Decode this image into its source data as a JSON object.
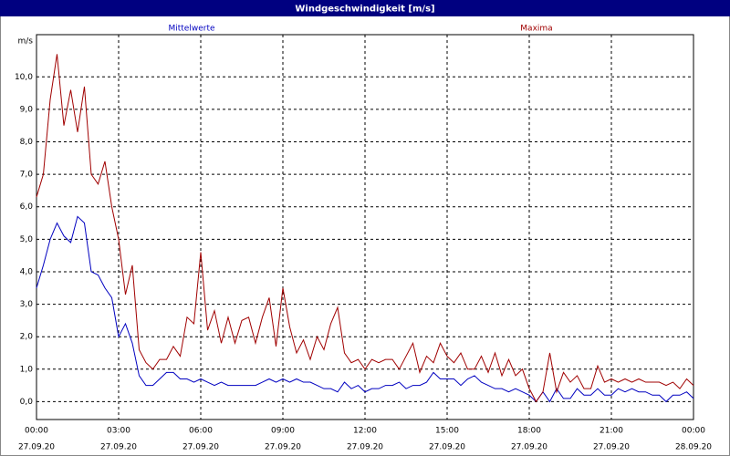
{
  "chart_data": {
    "type": "line",
    "title": "Windgeschwindigkeit [m/s]",
    "y_unit": "m/s",
    "x": [
      0,
      0.25,
      0.5,
      0.75,
      1,
      1.25,
      1.5,
      1.75,
      2,
      2.25,
      2.5,
      2.75,
      3,
      3.25,
      3.5,
      3.75,
      4,
      4.25,
      4.5,
      4.75,
      5,
      5.25,
      5.5,
      5.75,
      6,
      6.25,
      6.5,
      6.75,
      7,
      7.25,
      7.5,
      7.75,
      8,
      8.25,
      8.5,
      8.75,
      9,
      9.25,
      9.5,
      9.75,
      10,
      10.25,
      10.5,
      10.75,
      11,
      11.25,
      11.5,
      11.75,
      12,
      12.25,
      12.5,
      12.75,
      13,
      13.25,
      13.5,
      13.75,
      14,
      14.25,
      14.5,
      14.75,
      15,
      15.25,
      15.5,
      15.75,
      16,
      16.25,
      16.5,
      16.75,
      17,
      17.25,
      17.5,
      17.75,
      18,
      18.25,
      18.5,
      18.75,
      19,
      19.25,
      19.5,
      19.75,
      20,
      20.25,
      20.5,
      20.75,
      21,
      21.25,
      21.5,
      21.75,
      22,
      22.25,
      22.5,
      22.75,
      23,
      23.25,
      23.5,
      23.75,
      24
    ],
    "series": [
      {
        "name": "Mittelwerte",
        "color": "#0000c0",
        "values": [
          3.5,
          4.2,
          5.0,
          5.5,
          5.1,
          4.9,
          5.7,
          5.5,
          4.0,
          3.9,
          3.5,
          3.2,
          2.0,
          2.4,
          1.8,
          0.8,
          0.5,
          0.5,
          0.7,
          0.9,
          0.9,
          0.7,
          0.7,
          0.6,
          0.7,
          0.6,
          0.5,
          0.6,
          0.5,
          0.5,
          0.5,
          0.5,
          0.5,
          0.6,
          0.7,
          0.6,
          0.7,
          0.6,
          0.7,
          0.6,
          0.6,
          0.5,
          0.4,
          0.4,
          0.3,
          0.6,
          0.4,
          0.5,
          0.3,
          0.4,
          0.4,
          0.5,
          0.5,
          0.6,
          0.4,
          0.5,
          0.5,
          0.6,
          0.9,
          0.7,
          0.7,
          0.7,
          0.5,
          0.7,
          0.8,
          0.6,
          0.5,
          0.4,
          0.4,
          0.3,
          0.4,
          0.3,
          0.2,
          0.0,
          0.3,
          0.0,
          0.4,
          0.1,
          0.1,
          0.4,
          0.2,
          0.2,
          0.4,
          0.2,
          0.2,
          0.4,
          0.3,
          0.4,
          0.3,
          0.3,
          0.2,
          0.2,
          0.0,
          0.2,
          0.2,
          0.3,
          0.1
        ]
      },
      {
        "name": "Maxima",
        "color": "#a00000",
        "values": [
          6.3,
          7.0,
          9.3,
          10.7,
          8.5,
          9.6,
          8.3,
          9.7,
          7.0,
          6.7,
          7.4,
          6.0,
          5.0,
          3.3,
          4.2,
          1.6,
          1.2,
          1.0,
          1.3,
          1.3,
          1.7,
          1.4,
          2.6,
          2.4,
          4.6,
          2.2,
          2.8,
          1.8,
          2.6,
          1.8,
          2.5,
          2.6,
          1.8,
          2.6,
          3.2,
          1.7,
          3.5,
          2.3,
          1.5,
          1.9,
          1.3,
          2.0,
          1.6,
          2.4,
          2.9,
          1.5,
          1.2,
          1.3,
          1.0,
          1.3,
          1.2,
          1.3,
          1.3,
          1.0,
          1.4,
          1.8,
          0.9,
          1.4,
          1.2,
          1.8,
          1.4,
          1.2,
          1.5,
          1.0,
          1.0,
          1.4,
          0.9,
          1.5,
          0.8,
          1.3,
          0.8,
          1.0,
          0.4,
          0.0,
          0.3,
          1.5,
          0.3,
          0.9,
          0.6,
          0.8,
          0.4,
          0.4,
          1.1,
          0.6,
          0.7,
          0.6,
          0.7,
          0.6,
          0.7,
          0.6,
          0.6,
          0.6,
          0.5,
          0.6,
          0.4,
          0.7,
          0.5
        ]
      }
    ],
    "xlim": [
      0,
      24
    ],
    "xticks": [
      {
        "value": 0,
        "label": "00:00",
        "date": "27.09.20"
      },
      {
        "value": 3,
        "label": "03:00",
        "date": "27.09.20"
      },
      {
        "value": 6,
        "label": "06:00",
        "date": "27.09.20"
      },
      {
        "value": 9,
        "label": "09:00",
        "date": "27.09.20"
      },
      {
        "value": 12,
        "label": "12:00",
        "date": "27.09.20"
      },
      {
        "value": 15,
        "label": "15:00",
        "date": "27.09.20"
      },
      {
        "value": 18,
        "label": "18:00",
        "date": "27.09.20"
      },
      {
        "value": 21,
        "label": "21:00",
        "date": "27.09.20"
      },
      {
        "value": 24,
        "label": "00:00",
        "date": "28.09.20"
      }
    ],
    "ylim": [
      -0.55,
      11.3
    ],
    "yticks": [
      {
        "value": 0,
        "label": "0,0"
      },
      {
        "value": 1,
        "label": "1,0"
      },
      {
        "value": 2,
        "label": "2,0"
      },
      {
        "value": 3,
        "label": "3,0"
      },
      {
        "value": 4,
        "label": "4,0"
      },
      {
        "value": 5,
        "label": "5,0"
      },
      {
        "value": 6,
        "label": "6,0"
      },
      {
        "value": 7,
        "label": "7,0"
      },
      {
        "value": 8,
        "label": "8,0"
      },
      {
        "value": 9,
        "label": "9,0"
      },
      {
        "value": 10,
        "label": "10,0"
      }
    ],
    "grid": true
  }
}
